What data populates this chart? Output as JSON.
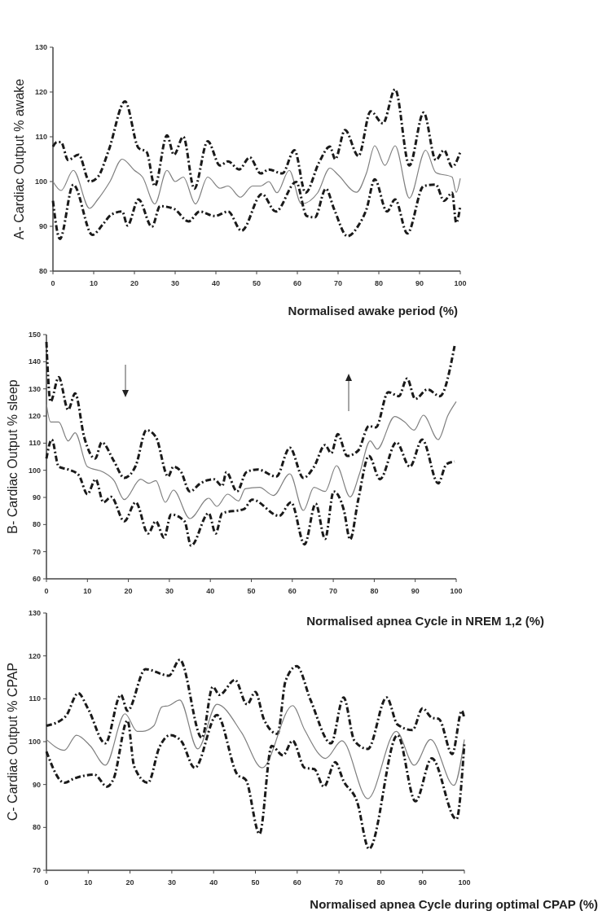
{
  "chart_data": [
    {
      "type": "line",
      "xlabel": "Normalised  awake period (%)",
      "ylabel": "A- Cardiac Output % awake",
      "xlim": [
        0,
        100
      ],
      "ylim": [
        80,
        130
      ],
      "xticks": [
        0,
        10,
        20,
        30,
        40,
        50,
        60,
        70,
        80,
        90,
        100
      ],
      "yticks": [
        80,
        90,
        100,
        110,
        120,
        130
      ],
      "series": [
        {
          "color": "#1a1a1a",
          "line_style": "dashed",
          "x": [
            0,
            1,
            2,
            3.7,
            6.3,
            9,
            11,
            13.7,
            17.7,
            21,
            23,
            25,
            28,
            29.7,
            32,
            34.7,
            38,
            41,
            43,
            45.7,
            48.3,
            51,
            53,
            56.3,
            59.3,
            62,
            65.3,
            68,
            69.3,
            71.7,
            75,
            78,
            81,
            84,
            87.5,
            91,
            94,
            96,
            98,
            100
          ],
          "values": [
            107.8,
            108.8,
            108.8,
            104.8,
            106,
            100,
            101,
            107,
            117.9,
            107.5,
            106.6,
            99,
            110.3,
            106,
            110,
            98.4,
            109,
            103.6,
            104.5,
            102.7,
            105.4,
            101.8,
            102.7,
            101.8,
            107,
            97.5,
            104.2,
            107.8,
            105,
            111.5,
            105.7,
            115.7,
            113,
            120.6,
            103.6,
            115.4,
            104.8,
            107,
            103.3,
            106.6
          ]
        },
        {
          "color": "#808080",
          "line_style": "solid",
          "x": [
            0,
            2,
            5,
            9,
            11,
            14,
            17,
            20,
            22,
            25,
            28,
            30,
            32,
            35,
            38,
            41,
            43,
            46,
            49,
            51,
            53,
            55,
            58,
            61,
            65,
            68,
            70,
            74.5,
            77,
            79,
            81.5,
            84,
            87.5,
            91.5,
            94,
            98,
            99,
            100
          ],
          "values": [
            100,
            98,
            102.5,
            94,
            96,
            100,
            105,
            102.5,
            101,
            95,
            102.5,
            100,
            101,
            95,
            101,
            98.5,
            99,
            96.5,
            99,
            99,
            100,
            97.5,
            102.5,
            95,
            97.5,
            103,
            101.5,
            97.6,
            102,
            108,
            103.6,
            108,
            96.3,
            107,
            102,
            101,
            97.6,
            100.7
          ]
        },
        {
          "color": "#1a1a1a",
          "line_style": "dashed",
          "x": [
            0,
            1.7,
            5,
            9.7,
            12.3,
            14.3,
            17,
            18.3,
            21,
            24.3,
            26.3,
            29.7,
            33.3,
            36,
            39.7,
            43,
            46.3,
            51.3,
            54.7,
            59.7,
            62.3,
            64.3,
            67,
            69,
            72.3,
            75,
            77,
            79,
            82,
            84,
            87,
            91,
            94,
            96,
            98,
            99,
            100
          ],
          "values": [
            95.7,
            87.2,
            99.3,
            88.1,
            90.5,
            92.6,
            93.3,
            90.2,
            96,
            89.9,
            94.5,
            93.9,
            91.1,
            93.3,
            92.3,
            93.3,
            89,
            97.2,
            93.3,
            99.9,
            92.3,
            92,
            98.4,
            93.9,
            87.8,
            90.2,
            93.9,
            100.5,
            93.3,
            96,
            88.4,
            99,
            99.3,
            95.7,
            97.5,
            90.8,
            94.5
          ]
        }
      ]
    },
    {
      "type": "line",
      "xlabel": "Normalised apnea Cycle in NREM 1,2  (%)",
      "ylabel": "B- Cardiac Output % sleep",
      "xlim": [
        0,
        100
      ],
      "ylim": [
        60,
        150
      ],
      "xticks": [
        0,
        10,
        20,
        30,
        40,
        50,
        60,
        70,
        80,
        90,
        100
      ],
      "yticks": [
        60,
        70,
        80,
        90,
        100,
        110,
        120,
        130,
        140,
        150
      ],
      "series": [
        {
          "color": "#1a1a1a",
          "line_style": "dashed",
          "x": [
            0,
            0.3,
            1,
            3,
            5.3,
            7,
            9.2,
            11.9,
            13.5,
            16.5,
            19,
            21.8,
            24.4,
            26.7,
            29.7,
            31,
            32.7,
            35,
            37.6,
            40.9,
            42.9,
            43.9,
            46.5,
            48.8,
            51.5,
            56.1,
            59.4,
            62.7,
            65.3,
            68,
            69.5,
            71.1,
            73.4,
            76.1,
            78.7,
            80.4,
            83.4,
            86,
            88,
            90,
            93,
            96,
            99.6
          ],
          "values": [
            147.3,
            137.3,
            125.3,
            134.3,
            122.3,
            128.3,
            112.3,
            104.3,
            110.3,
            103.3,
            97.2,
            101.7,
            114.8,
            112.3,
            97.7,
            101.3,
            99.8,
            92.2,
            95.2,
            96.7,
            94.2,
            99.3,
            92.2,
            99.3,
            100.3,
            97.7,
            108.3,
            97.2,
            101.3,
            109.3,
            106.3,
            113.3,
            105.3,
            107.3,
            116.3,
            115.8,
            128.8,
            127.3,
            133.8,
            126.3,
            129.8,
            127.3,
            145.8
          ]
        },
        {
          "color": "#808080",
          "line_style": "solid",
          "x": [
            0,
            1,
            3,
            5.3,
            7,
            10,
            13.9,
            16.5,
            19,
            23,
            25,
            26.7,
            29,
            31,
            35,
            39.6,
            41.6,
            44.2,
            46.9,
            48.5,
            52,
            55.4,
            59.4,
            62.7,
            65.3,
            68,
            70.8,
            74.1,
            76.4,
            79,
            80.7,
            85,
            87.4,
            89.7,
            92,
            95.6,
            98,
            100
          ],
          "values": [
            124.3,
            117.8,
            117.8,
            110.8,
            113.8,
            101.3,
            99.3,
            96.2,
            89.2,
            96.7,
            95.2,
            96.2,
            88.2,
            92.7,
            82.2,
            89.7,
            86.7,
            91.2,
            88.7,
            93.2,
            93.7,
            90.7,
            98.7,
            85.2,
            93.7,
            92.2,
            101.7,
            90.2,
            98.7,
            110.8,
            107.8,
            119.8,
            117.8,
            114.8,
            120.3,
            111.3,
            120.3,
            125.3
          ]
        },
        {
          "color": "#1a1a1a",
          "line_style": "dashed",
          "x": [
            0,
            1.3,
            3,
            5.3,
            7.9,
            10,
            12,
            13.9,
            15.8,
            19,
            21.8,
            24.8,
            26.7,
            28.7,
            30.4,
            33.7,
            35.3,
            39.6,
            41.3,
            42.9,
            48.2,
            50.2,
            56.8,
            59.7,
            63,
            65.7,
            68,
            70.1,
            72.6,
            74.1,
            76.1,
            78.7,
            81.4,
            85.4,
            88.7,
            91.7,
            95.6,
            97.6,
            99.6
          ],
          "values": [
            104.3,
            111.3,
            101.3,
            100.3,
            98.2,
            91.2,
            96.7,
            88.2,
            90.2,
            81.2,
            88.2,
            76.7,
            81.2,
            75.2,
            83.7,
            81.2,
            72.2,
            84.2,
            76.7,
            84.2,
            85.7,
            89.2,
            83.2,
            88.2,
            72.7,
            87.7,
            74.7,
            92.2,
            85.2,
            74.5,
            89.2,
            105.3,
            96.7,
            110.3,
            101.3,
            111.3,
            95.2,
            102.2,
            103.2
          ]
        }
      ]
    },
    {
      "type": "line",
      "xlabel": "Normalised apnea Cycle during optimal CPAP (%)",
      "ylabel": "C- Cardiac Output % CPAP",
      "xlim": [
        0,
        100
      ],
      "ylim": [
        70,
        130
      ],
      "xticks": [
        0,
        10,
        20,
        30,
        40,
        50,
        60,
        70,
        80,
        90,
        100
      ],
      "yticks": [
        70,
        80,
        90,
        100,
        110,
        120,
        130
      ],
      "series": [
        {
          "color": "#1a1a1a",
          "line_style": "dashed",
          "x": [
            0,
            4.6,
            7.6,
            9.9,
            14.1,
            17.8,
            19.4,
            23.7,
            29.3,
            31.9,
            37.2,
            39.8,
            41.4,
            45.1,
            48,
            50,
            52,
            55.3,
            57.2,
            59.9,
            63.2,
            68.1,
            71.1,
            73.7,
            76.9,
            81.4,
            84,
            87.6,
            90,
            92.2,
            93.9,
            97.1,
            99.4,
            100
          ],
          "values": [
            103.7,
            105.9,
            111.3,
            107.8,
            99.6,
            110.9,
            107.2,
            116.9,
            115.4,
            119.1,
            100.9,
            112.8,
            110.9,
            114.4,
            108.7,
            111.6,
            105.3,
            101.8,
            114.1,
            117.6,
            109.7,
            99.6,
            110.3,
            100.2,
            98.3,
            110.3,
            104,
            102.7,
            107.8,
            105.6,
            105.3,
            97.1,
            107.2,
            105.3
          ]
        },
        {
          "color": "#808080",
          "line_style": "solid",
          "x": [
            0,
            4.3,
            7.2,
            10.5,
            14.1,
            18.8,
            21.7,
            23,
            25.7,
            27.6,
            29.3,
            31.9,
            36.2,
            40.8,
            46.7,
            51.6,
            58.9,
            61.8,
            66.8,
            70.7,
            76.9,
            83.7,
            88,
            91.9,
            97.5,
            100
          ],
          "values": [
            100.5,
            98,
            101.5,
            99,
            94.5,
            106.5,
            102.4,
            102.4,
            103.7,
            108.1,
            108.4,
            109.7,
            98.3,
            108.7,
            102.1,
            93.9,
            108.4,
            102.7,
            96.1,
            100.2,
            86.7,
            102.4,
            94.5,
            100.5,
            89.8,
            100.5
          ]
        },
        {
          "color": "#1a1a1a",
          "line_style": "dashed",
          "x": [
            0,
            4.3,
            6.6,
            11.5,
            14.5,
            16.1,
            19.4,
            21,
            24.3,
            27,
            29.6,
            32.2,
            35.5,
            40.8,
            45.7,
            47.7,
            51,
            53.9,
            56.6,
            58.9,
            61.8,
            64.1,
            66.4,
            69.1,
            71.1,
            74.3,
            77.2,
            84,
            88.3,
            92.2,
            98.1,
            100
          ],
          "values": [
            97.7,
            90.4,
            91.4,
            92.3,
            89.5,
            91.4,
            104.9,
            94.2,
            90.4,
            98.6,
            101.5,
            100.2,
            93.9,
            106.2,
            92.3,
            91.1,
            78.5,
            99,
            96.8,
            100.2,
            93.9,
            93.6,
            89.5,
            95.2,
            90.8,
            86.1,
            75,
            101.5,
            86.1,
            96.1,
            81.9,
            99.6
          ]
        }
      ]
    }
  ]
}
